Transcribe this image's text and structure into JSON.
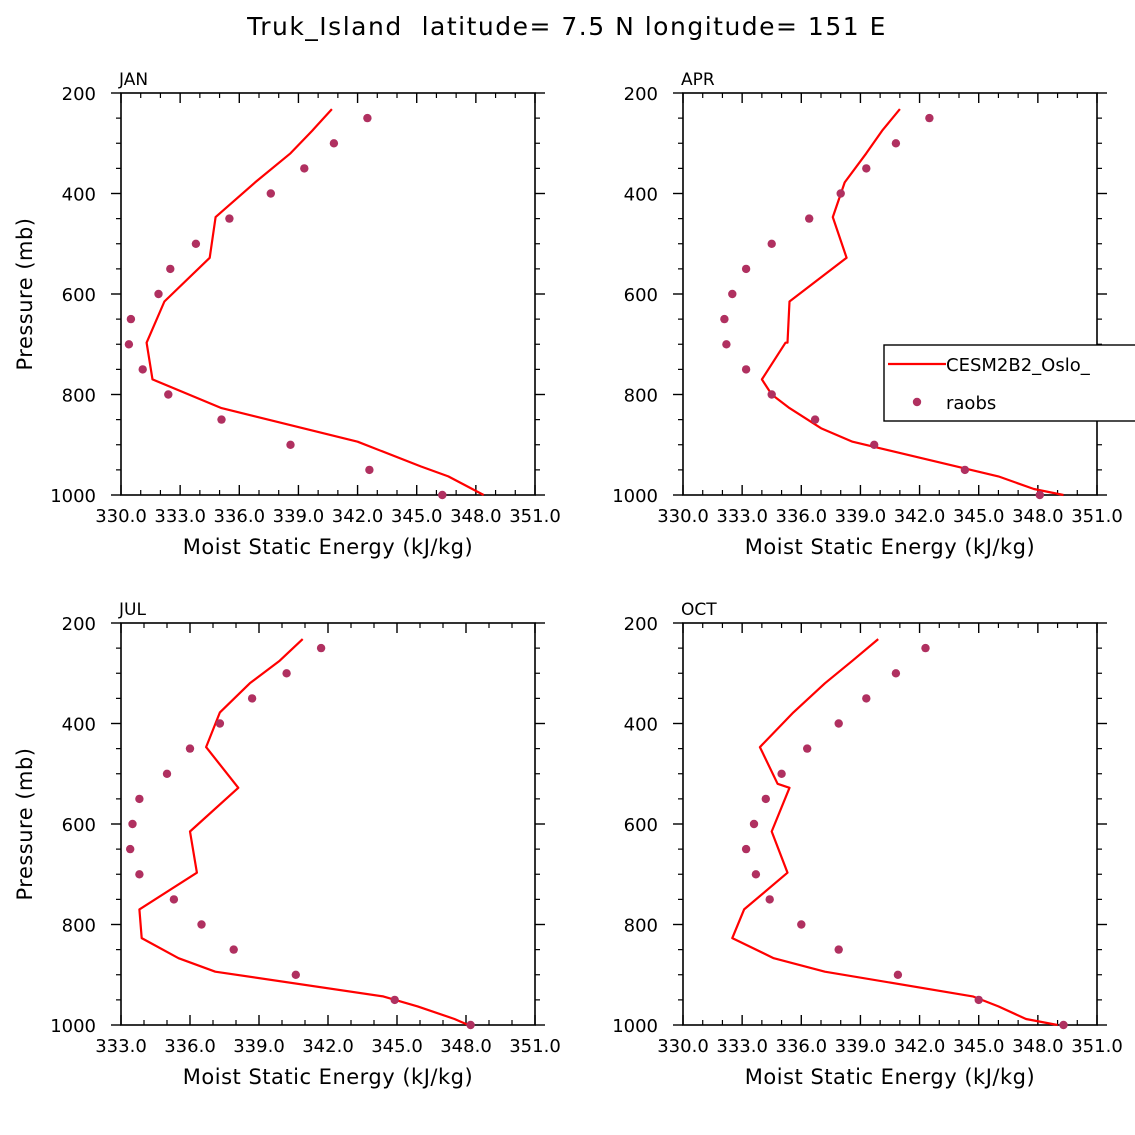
{
  "figure": {
    "title": "Truk_Island  latitude= 7.5 N longitude= 151 E",
    "line_color": "#ff0000",
    "marker_color": "#b03060"
  },
  "chart_data": [
    {
      "type": "line",
      "panel": "JAN",
      "xlabel": "Moist Static Energy (kJ/kg)",
      "ylabel": "Pressure (mb)",
      "xlim": [
        330.0,
        351.0
      ],
      "ylim": [
        200,
        1000
      ],
      "y_inverted": true,
      "xtick_labels": [
        "330.0",
        "333.0",
        "336.0",
        "339.0",
        "342.0",
        "345.0",
        "348.0",
        "351.0"
      ],
      "ytick_labels": [
        "200",
        "400",
        "600",
        "800",
        "1000"
      ],
      "series": [
        {
          "name": "CESM2B2_Oslo_",
          "style": "line",
          "x": [
            340.7,
            339.7,
            338.6,
            336.8,
            334.8,
            334.5,
            332.2,
            331.3,
            331.6,
            335.1,
            342.0,
            345.2,
            346.6,
            348.4
          ],
          "y": [
            232,
            275,
            320,
            378,
            447,
            528,
            615,
            697,
            770,
            827,
            894,
            943,
            963,
            1000
          ]
        },
        {
          "name": "raobs",
          "style": "markers",
          "x": [
            342.5,
            340.8,
            339.3,
            337.6,
            335.5,
            333.8,
            332.5,
            331.9,
            330.5,
            330.4,
            331.1,
            332.4,
            335.1,
            338.6,
            342.6,
            346.3
          ],
          "y": [
            250,
            300,
            350,
            400,
            450,
            500,
            550,
            600,
            650,
            700,
            750,
            800,
            850,
            900,
            950,
            1000
          ]
        }
      ]
    },
    {
      "type": "line",
      "panel": "APR",
      "xlabel": "Moist Static Energy (kJ/kg)",
      "ylabel": "",
      "xlim": [
        330.0,
        351.0
      ],
      "ylim": [
        200,
        1000
      ],
      "y_inverted": true,
      "xtick_labels": [
        "330.0",
        "333.0",
        "336.0",
        "339.0",
        "342.0",
        "345.0",
        "348.0",
        "351.0"
      ],
      "ytick_labels": [
        "200",
        "400",
        "600",
        "800",
        "1000"
      ],
      "legend": {
        "location": "right",
        "entries": [
          "CESM2B2_Oslo_",
          "raobs"
        ]
      },
      "series": [
        {
          "name": "CESM2B2_Oslo_",
          "style": "line",
          "x": [
            341.0,
            340.1,
            339.3,
            338.2,
            337.6,
            338.3,
            335.4,
            335.3,
            335.2,
            334.0,
            334.5,
            335.4,
            337.0,
            338.6,
            346.0,
            347.8,
            349.3
          ],
          "y": [
            232,
            275,
            320,
            378,
            447,
            528,
            615,
            697,
            697,
            770,
            800,
            827,
            867,
            894,
            963,
            988,
            1000
          ]
        },
        {
          "name": "raobs",
          "style": "markers",
          "x": [
            342.5,
            340.8,
            339.3,
            338.0,
            336.4,
            334.5,
            333.2,
            332.5,
            332.1,
            332.2,
            333.2,
            334.5,
            336.7,
            339.7,
            344.3,
            348.1
          ],
          "y": [
            250,
            300,
            350,
            400,
            450,
            500,
            550,
            600,
            650,
            700,
            750,
            800,
            850,
            900,
            950,
            1000
          ]
        }
      ]
    },
    {
      "type": "line",
      "panel": "JUL",
      "xlabel": "Moist Static Energy (kJ/kg)",
      "ylabel": "Pressure (mb)",
      "xlim": [
        333.0,
        351.0
      ],
      "ylim": [
        200,
        1000
      ],
      "y_inverted": true,
      "xtick_labels": [
        "333.0",
        "336.0",
        "339.0",
        "342.0",
        "345.0",
        "348.0",
        "351.0"
      ],
      "ytick_labels": [
        "200",
        "400",
        "600",
        "800",
        "1000"
      ],
      "series": [
        {
          "name": "CESM2B2_Oslo_",
          "style": "line",
          "x": [
            340.9,
            339.9,
            338.6,
            337.3,
            336.7,
            338.1,
            336.0,
            336.3,
            333.8,
            333.9,
            335.5,
            337.1,
            344.4,
            345.9,
            347.5,
            348.1
          ],
          "y": [
            232,
            275,
            320,
            378,
            447,
            528,
            615,
            697,
            770,
            827,
            867,
            894,
            943,
            963,
            988,
            1000
          ]
        },
        {
          "name": "raobs",
          "style": "markers",
          "x": [
            341.7,
            340.2,
            338.7,
            337.3,
            336.0,
            335.0,
            333.8,
            333.5,
            333.4,
            333.8,
            335.3,
            336.5,
            337.9,
            340.6,
            344.9,
            348.2
          ],
          "y": [
            250,
            300,
            350,
            400,
            450,
            500,
            550,
            600,
            650,
            700,
            750,
            800,
            850,
            900,
            950,
            1000
          ]
        }
      ]
    },
    {
      "type": "line",
      "panel": "OCT",
      "xlabel": "Moist Static Energy (kJ/kg)",
      "ylabel": "",
      "xlim": [
        330.0,
        351.0
      ],
      "ylim": [
        200,
        1000
      ],
      "y_inverted": true,
      "xtick_labels": [
        "330.0",
        "333.0",
        "336.0",
        "339.0",
        "342.0",
        "345.0",
        "348.0",
        "351.0"
      ],
      "ytick_labels": [
        "200",
        "400",
        "600",
        "800",
        "1000"
      ],
      "series": [
        {
          "name": "CESM2B2_Oslo_",
          "style": "line",
          "x": [
            339.9,
            338.6,
            337.2,
            335.6,
            333.9,
            334.8,
            335.4,
            334.5,
            335.3,
            333.1,
            332.5,
            334.6,
            337.2,
            344.7,
            346.0,
            347.4,
            349.0
          ],
          "y": [
            232,
            275,
            320,
            378,
            447,
            520,
            528,
            615,
            697,
            770,
            827,
            867,
            894,
            943,
            963,
            988,
            1000
          ]
        },
        {
          "name": "raobs",
          "style": "markers",
          "x": [
            342.3,
            340.8,
            339.3,
            337.9,
            336.3,
            335.0,
            334.2,
            333.6,
            333.2,
            333.7,
            334.4,
            336.0,
            337.9,
            340.9,
            345.0,
            349.3
          ],
          "y": [
            250,
            300,
            350,
            400,
            450,
            500,
            550,
            600,
            650,
            700,
            750,
            800,
            850,
            900,
            950,
            1000
          ]
        }
      ]
    }
  ]
}
